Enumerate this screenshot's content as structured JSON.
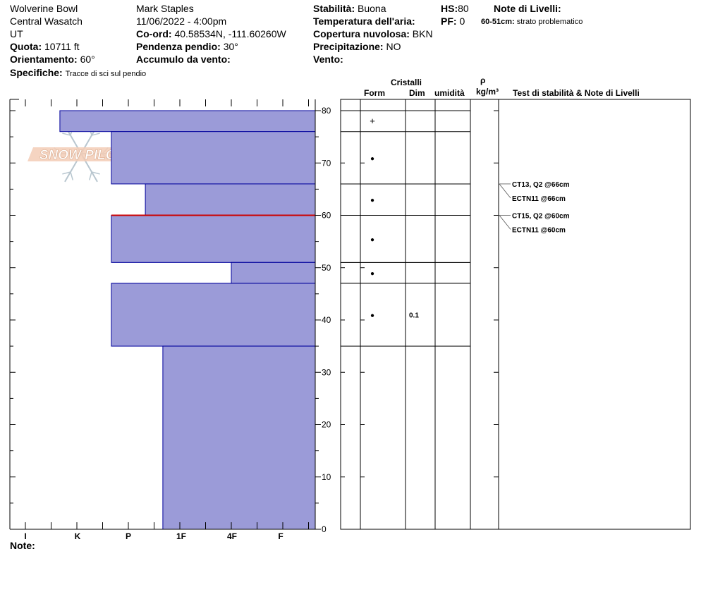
{
  "header": {
    "location": "Wolverine Bowl",
    "range": "Central Wasatch",
    "state": "UT",
    "elevation_label": "Quota:",
    "elevation_value": "10711 ft",
    "aspect_label": "Orientamento:",
    "aspect_value": "60°",
    "specifics_label": "Specifiche:",
    "specifics_value": "Tracce di sci sul pendio",
    "observer": "Mark Staples",
    "datetime": "11/06/2022 - 4:00pm",
    "coord_label": "Co-ord:",
    "coord_value": "40.58534N, -111.60260W",
    "slope_label": "Pendenza pendio:",
    "slope_value": "30°",
    "wind_loading_label": "Accumulo da vento:",
    "wind_loading_value": "",
    "stability_label": "Stabilità:",
    "stability_value": "Buona",
    "air_temp_label": "Temperatura dell'aria:",
    "air_temp_value": "",
    "sky_label": "Copertura nuvolosa:",
    "sky_value": "BKN",
    "precip_label": "Precipitazione:",
    "precip_value": "NO",
    "wind_label": "Vento:",
    "wind_value": "",
    "hs_label": "HS:",
    "hs_value": "80",
    "pf_label": "PF:",
    "pf_value": "0",
    "layer_notes_label": "Note di Livelli:",
    "layer_note_range": "60-51cm:",
    "layer_note_text": "strato problematico"
  },
  "logo_text": "SNOW PILOT",
  "notes_label": "Note:",
  "table_headers": {
    "crystals": "Cristalli",
    "form": "Form",
    "dim": "Dim",
    "moisture": "umidità",
    "rho": "ρ",
    "density_unit": "kg/m³",
    "tests": "Test di stabilità & Note di Livelli"
  },
  "chart_data": {
    "type": "bar",
    "title": "",
    "orientation": "horizontal",
    "xlabel": "",
    "ylabel": "",
    "x_categories": [
      "I",
      "K",
      "P",
      "1F",
      "4F",
      "F"
    ],
    "y_ticks": [
      "0",
      "10",
      "20",
      "30",
      "40",
      "50",
      "60",
      "70",
      "80"
    ],
    "ylim": [
      0,
      80
    ],
    "total_height_cm": 80,
    "layers": [
      {
        "top": 80,
        "bottom": 76,
        "hardness": 0.67
      },
      {
        "top": 76,
        "bottom": 66,
        "hardness": 1.67
      },
      {
        "top": 66,
        "bottom": 60,
        "hardness": 2.33
      },
      {
        "top": 60,
        "bottom": 51,
        "hardness": 1.67
      },
      {
        "top": 51,
        "bottom": 47,
        "hardness": 4.0
      },
      {
        "top": 47,
        "bottom": 35,
        "hardness": 1.67
      },
      {
        "top": 35,
        "bottom": 0,
        "hardness": 2.67
      }
    ],
    "problem_layer_depth": 60,
    "bar_color": "#9b9bd8",
    "problem_line_color": "#cc0000",
    "layer_table_boundaries": [
      80,
      76,
      66,
      60,
      51,
      47,
      35
    ],
    "crystals": [
      {
        "depth": 78,
        "form": "+",
        "size": ""
      },
      {
        "depth": 71,
        "form": "●",
        "size": ""
      },
      {
        "depth": 63,
        "form": "●",
        "size": ""
      },
      {
        "depth": 55.5,
        "form": "●",
        "size": ""
      },
      {
        "depth": 49,
        "form": "●",
        "size": ""
      },
      {
        "depth": 41,
        "form": "●",
        "size": "0.1"
      }
    ],
    "tests": [
      {
        "depth": 66,
        "text": "CT13, Q2 @66cm"
      },
      {
        "depth": 66,
        "text": "ECTN11 @66cm"
      },
      {
        "depth": 60,
        "text": "CT15, Q2 @60cm"
      },
      {
        "depth": 60,
        "text": "ECTN11 @60cm"
      }
    ]
  }
}
